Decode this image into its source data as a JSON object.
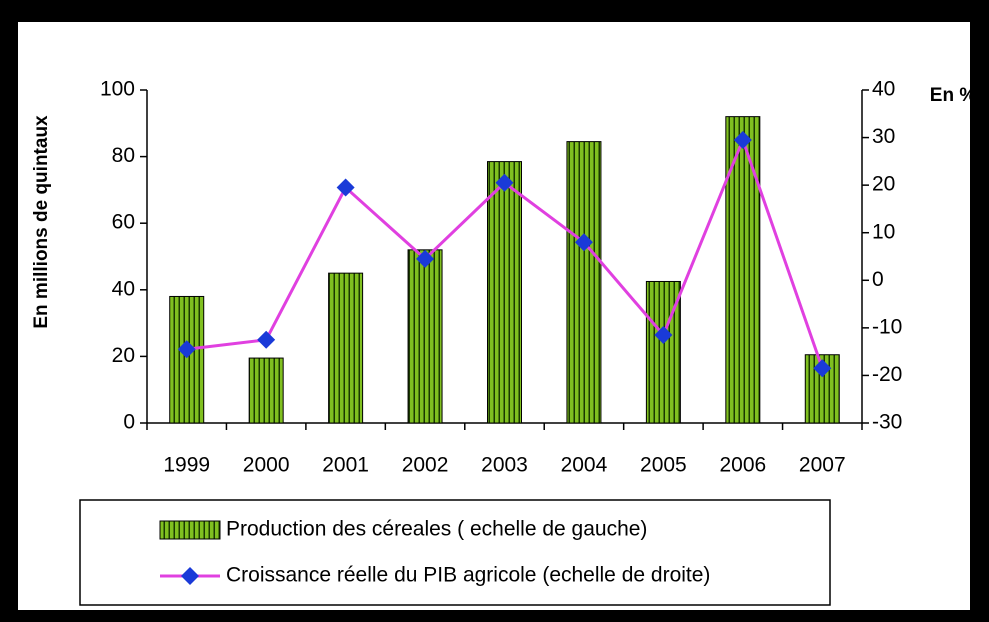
{
  "chart_data": {
    "type": "bar-line",
    "y_label": "En millions de quintaux",
    "y2_label": "En %",
    "categories": [
      "1999",
      "2000",
      "2001",
      "2002",
      "2003",
      "2004",
      "2005",
      "2006",
      "2007"
    ],
    "series": [
      {
        "name": "Production des céreales ( echelle de gauche)",
        "type": "bar",
        "color": "#80c020",
        "values": [
          38,
          19.5,
          45,
          52,
          78.5,
          84.5,
          42.5,
          92,
          20.5
        ]
      },
      {
        "name": "Croissance réelle du PIB agricole (echelle de droite)",
        "type": "line",
        "axis": "y2",
        "color": "#e040e0",
        "marker_color": "#1a3ad8",
        "values": [
          -14.5,
          -12.5,
          19.5,
          4.5,
          20.5,
          8,
          -11.5,
          29.5,
          -18.5
        ]
      }
    ],
    "ylim": [
      0,
      100
    ],
    "yticks": [
      0,
      20,
      40,
      60,
      80,
      100
    ],
    "y2lim": [
      -30,
      40
    ],
    "y2ticks": [
      -30,
      -20,
      -10,
      0,
      10,
      20,
      30,
      40
    ],
    "grid": false,
    "legend": "bottom"
  }
}
